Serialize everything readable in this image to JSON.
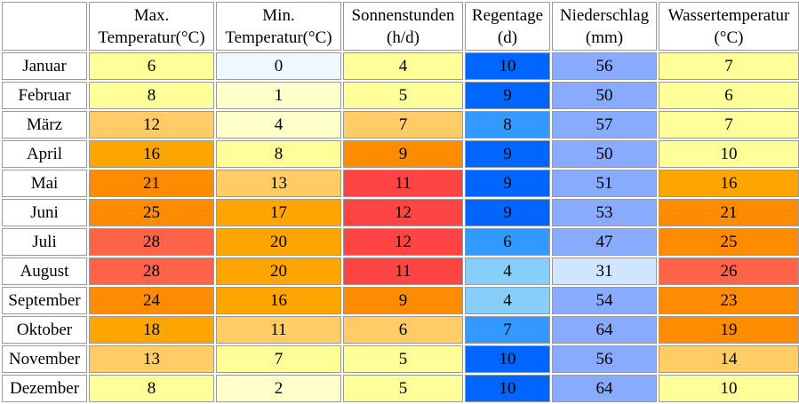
{
  "header": {
    "col_max": [
      "Max.",
      "Temperatur(°C)"
    ],
    "col_min": [
      "Min.",
      "Temperatur(°C)"
    ],
    "col_sun": [
      "Sonnenstunden",
      "(h/d)"
    ],
    "col_rain": [
      "Regentage",
      "(d)"
    ],
    "col_prec": [
      "Niederschlag",
      "(mm)"
    ],
    "col_water": [
      "Wassertemperatur",
      "(°C)"
    ]
  },
  "rows": [
    {
      "month": "Januar",
      "max": "6",
      "min": "0",
      "sun": "4",
      "rain": "10",
      "prec": "56",
      "water": "7"
    },
    {
      "month": "Februar",
      "max": "8",
      "min": "1",
      "sun": "5",
      "rain": "9",
      "prec": "50",
      "water": "6"
    },
    {
      "month": "März",
      "max": "12",
      "min": "4",
      "sun": "7",
      "rain": "8",
      "prec": "57",
      "water": "7"
    },
    {
      "month": "April",
      "max": "16",
      "min": "8",
      "sun": "9",
      "rain": "9",
      "prec": "50",
      "water": "10"
    },
    {
      "month": "Mai",
      "max": "21",
      "min": "13",
      "sun": "11",
      "rain": "9",
      "prec": "51",
      "water": "16"
    },
    {
      "month": "Juni",
      "max": "25",
      "min": "17",
      "sun": "12",
      "rain": "9",
      "prec": "53",
      "water": "21"
    },
    {
      "month": "Juli",
      "max": "28",
      "min": "20",
      "sun": "12",
      "rain": "6",
      "prec": "47",
      "water": "25"
    },
    {
      "month": "August",
      "max": "28",
      "min": "20",
      "sun": "11",
      "rain": "4",
      "prec": "31",
      "water": "26"
    },
    {
      "month": "September",
      "max": "24",
      "min": "16",
      "sun": "9",
      "rain": "4",
      "prec": "54",
      "water": "23"
    },
    {
      "month": "Oktober",
      "max": "18",
      "min": "11",
      "sun": "6",
      "rain": "7",
      "prec": "64",
      "water": "19"
    },
    {
      "month": "November",
      "max": "13",
      "min": "7",
      "sun": "5",
      "rain": "10",
      "prec": "56",
      "water": "14"
    },
    {
      "month": "Dezember",
      "max": "8",
      "min": "2",
      "sun": "5",
      "rain": "10",
      "prec": "64",
      "water": "10"
    }
  ],
  "cell_colors": {
    "max": [
      "#ffff99",
      "#ffff99",
      "#ffcc66",
      "#ffa500",
      "#ff8c00",
      "#ff8c00",
      "#ff6347",
      "#ff6347",
      "#ff8c00",
      "#ffa500",
      "#ffcc66",
      "#ffff99"
    ],
    "min": [
      "#f0f8ff",
      "#ffffcc",
      "#ffffcc",
      "#ffff99",
      "#ffcc66",
      "#ffa500",
      "#ffa500",
      "#ffa500",
      "#ffa500",
      "#ffcc66",
      "#ffff99",
      "#ffffcc"
    ],
    "sun": [
      "#ffff99",
      "#ffff99",
      "#ffcc66",
      "#ff8c00",
      "#ff4444",
      "#ff4444",
      "#ff4444",
      "#ff4444",
      "#ff8c00",
      "#ffcc66",
      "#ffff99",
      "#ffff99"
    ],
    "rain": [
      "#0066ff",
      "#0066ff",
      "#3399ff",
      "#0066ff",
      "#0066ff",
      "#0066ff",
      "#3399ff",
      "#87cefa",
      "#87cefa",
      "#3399ff",
      "#0066ff",
      "#0066ff"
    ],
    "prec": [
      "#88aaff",
      "#88aaff",
      "#88aaff",
      "#88aaff",
      "#88aaff",
      "#88aaff",
      "#88aaff",
      "#d0e6ff",
      "#88aaff",
      "#88aaff",
      "#88aaff",
      "#88aaff"
    ],
    "water": [
      "#ffff99",
      "#ffff99",
      "#ffff99",
      "#ffff99",
      "#ffa500",
      "#ff8c00",
      "#ff8c00",
      "#ff6347",
      "#ff8c00",
      "#ff8c00",
      "#ffcc66",
      "#ffff99"
    ],
    "month": "#ffffff"
  }
}
